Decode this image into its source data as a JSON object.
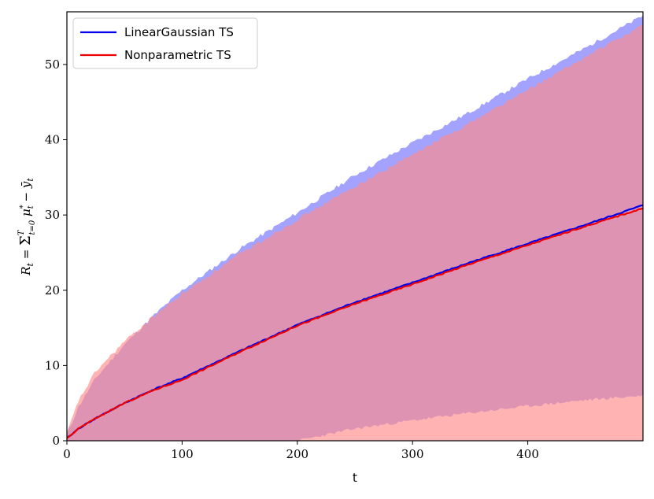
{
  "chart_data": {
    "type": "line",
    "xlabel": "t",
    "ylabel": "R_t = Σ_{t=0}^{T} μ*_t − ȳ_t",
    "xlim": [
      0,
      500
    ],
    "ylim": [
      0,
      57
    ],
    "x_ticks": [
      "0",
      "100",
      "200",
      "300",
      "400"
    ],
    "x_tick_values": [
      0,
      100,
      200,
      300,
      400
    ],
    "y_ticks": [
      "0",
      "10",
      "20",
      "30",
      "40",
      "50"
    ],
    "y_tick_values": [
      0,
      10,
      20,
      30,
      40,
      50
    ],
    "grid": false,
    "legend_position": "top-left",
    "x": [
      0,
      10,
      25,
      50,
      75,
      100,
      150,
      200,
      250,
      300,
      350,
      400,
      450,
      500
    ],
    "series": [
      {
        "name": "LinearGaussian TS",
        "color": "#0000ee",
        "band_color": "#8c8cff",
        "mean": [
          0.3,
          1.6,
          3.0,
          5.0,
          6.8,
          8.3,
          11.9,
          15.4,
          18.4,
          21.0,
          23.7,
          26.2,
          28.7,
          31.3
        ],
        "upper": [
          0.8,
          4.5,
          8.3,
          12.8,
          16.6,
          20.0,
          25.5,
          30.3,
          35.3,
          39.6,
          43.7,
          48.1,
          52.2,
          56.5
        ],
        "lower": [
          0.0,
          0.0,
          0.0,
          0.0,
          0.0,
          0.0,
          0.0,
          0.0,
          1.6,
          2.7,
          3.7,
          4.6,
          5.4,
          6.0
        ]
      },
      {
        "name": "Nonparametric TS",
        "color": "#ee0000",
        "band_color": "#ff8a8a",
        "mean": [
          0.3,
          1.6,
          3.0,
          5.0,
          6.7,
          8.1,
          11.8,
          15.3,
          18.2,
          20.8,
          23.5,
          26.0,
          28.5,
          30.9
        ],
        "upper": [
          1.0,
          5.3,
          9.2,
          13.2,
          16.5,
          19.5,
          24.8,
          29.4,
          33.8,
          38.0,
          42.3,
          46.6,
          51.0,
          55.2
        ],
        "lower": [
          0.0,
          0.0,
          0.0,
          0.0,
          0.0,
          0.0,
          0.0,
          0.0,
          0.0,
          0.0,
          0.0,
          0.0,
          0.0,
          0.0
        ]
      }
    ]
  }
}
